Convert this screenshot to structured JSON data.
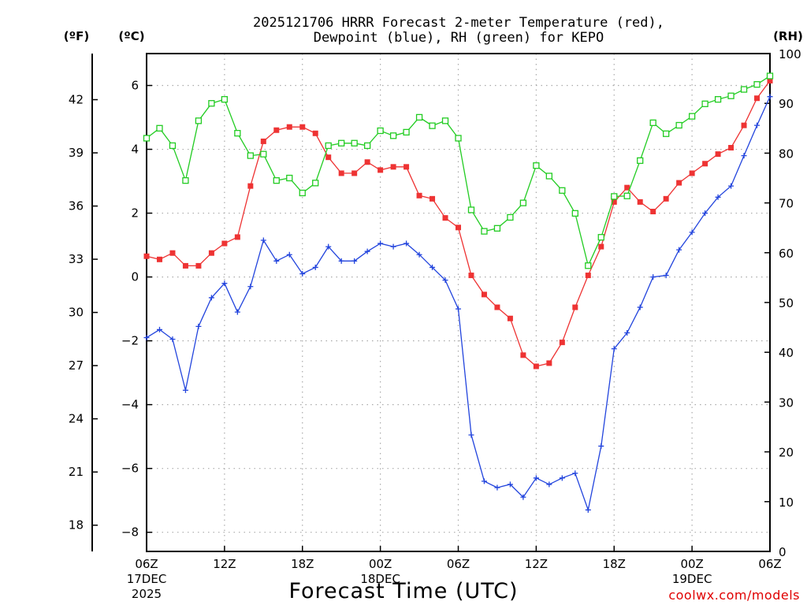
{
  "chart_data": {
    "type": "line",
    "title_line1": "2025121706 HRRR Forecast 2-meter Temperature (red),",
    "title_line2": "Dewpoint (blue), RH (green) for KEPO",
    "xlabel": "Forecast Time (UTC)",
    "unit_left_outer": "(ºF)",
    "unit_left_inner": "(ºC)",
    "unit_right": "(RH)",
    "credit": "coolwx.com/models",
    "x_range_hours": [
      0,
      48
    ],
    "x_ticks": [
      {
        "hour": 0,
        "lines": [
          "06Z",
          "17DEC",
          "2025"
        ]
      },
      {
        "hour": 6,
        "lines": [
          "12Z"
        ]
      },
      {
        "hour": 12,
        "lines": [
          "18Z"
        ]
      },
      {
        "hour": 18,
        "lines": [
          "00Z",
          "18DEC"
        ]
      },
      {
        "hour": 24,
        "lines": [
          "06Z"
        ]
      },
      {
        "hour": 30,
        "lines": [
          "12Z"
        ]
      },
      {
        "hour": 36,
        "lines": [
          "18Z"
        ]
      },
      {
        "hour": 42,
        "lines": [
          "00Z",
          "19DEC"
        ]
      },
      {
        "hour": 48,
        "lines": [
          "06Z"
        ]
      }
    ],
    "celsius_axis": {
      "min": -8.6,
      "max": 7.0,
      "ticks": [
        6,
        4,
        2,
        0,
        -2,
        -4,
        -6,
        -8
      ]
    },
    "fahrenheit_axis": {
      "min": 16.52,
      "max": 44.6,
      "ticks": [
        42,
        39,
        36,
        33,
        30,
        27,
        24,
        21,
        18
      ]
    },
    "rh_axis": {
      "min": 0,
      "max": 100,
      "ticks": [
        0,
        10,
        20,
        30,
        40,
        50,
        60,
        70,
        80,
        90,
        100
      ]
    },
    "grid": true,
    "series": [
      {
        "name": "Temperature",
        "axis": "celsius",
        "color": "#ee3333",
        "marker": "filled-square",
        "values": [
          0.65,
          0.55,
          0.75,
          0.35,
          0.35,
          0.75,
          1.05,
          1.25,
          2.85,
          4.25,
          4.6,
          4.7,
          4.7,
          4.5,
          3.75,
          3.25,
          3.25,
          3.6,
          3.35,
          3.45,
          3.45,
          2.55,
          2.45,
          1.85,
          1.55,
          0.05,
          -0.55,
          -0.95,
          -1.3,
          -2.45,
          -2.8,
          -2.7,
          -2.05,
          -0.95,
          0.05,
          0.95,
          2.35,
          2.8,
          2.35,
          2.05,
          2.45,
          2.95,
          3.25,
          3.55,
          3.85,
          4.05,
          4.75,
          5.6,
          6.15
        ]
      },
      {
        "name": "Dewpoint",
        "axis": "celsius",
        "color": "#2244dd",
        "marker": "plus",
        "values": [
          -1.9,
          -1.65,
          -1.95,
          -3.55,
          -1.55,
          -0.65,
          -0.2,
          -1.1,
          -0.3,
          1.15,
          0.5,
          0.7,
          0.1,
          0.3,
          0.95,
          0.5,
          0.5,
          0.8,
          1.05,
          0.95,
          1.05,
          0.7,
          0.3,
          -0.1,
          -1.0,
          -4.95,
          -6.4,
          -6.6,
          -6.5,
          -6.9,
          -6.3,
          -6.5,
          -6.3,
          -6.15,
          -7.3,
          -5.3,
          -2.25,
          -1.75,
          -0.95,
          0.0,
          0.05,
          0.85,
          1.4,
          2.0,
          2.5,
          2.85,
          3.8,
          4.75,
          5.65
        ]
      },
      {
        "name": "RH",
        "axis": "rh",
        "color": "#22cc22",
        "marker": "open-square",
        "values": [
          83,
          85,
          81.5,
          74.5,
          86.5,
          90,
          90.8,
          84,
          79.5,
          79.8,
          74.5,
          75,
          72,
          74,
          81.5,
          82,
          82,
          81.5,
          84.5,
          83.5,
          84.2,
          87.2,
          85.5,
          86.5,
          83,
          68.6,
          64.3,
          64.9,
          67.1,
          70,
          77.5,
          75.4,
          72.5,
          67.9,
          57.4,
          63.1,
          71.3,
          71.4,
          78.5,
          86.1,
          83.9,
          85.6,
          87.4,
          89.9,
          90.8,
          91.5,
          92.8,
          93.8,
          95.5
        ]
      }
    ]
  }
}
